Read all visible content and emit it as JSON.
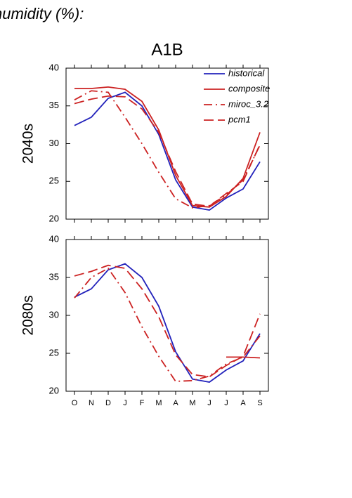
{
  "heading": "humidity (%):",
  "chart_data": [
    {
      "type": "line",
      "title": "A1B",
      "row_label": "2040s",
      "ylim": [
        20,
        40
      ],
      "yticks": [
        20,
        25,
        30,
        35,
        40
      ],
      "legend": "upper right",
      "series": [
        {
          "name": "historical",
          "color": "#2222bb",
          "dash": "solid",
          "values": [
            32.4,
            33.5,
            36.0,
            36.8,
            35.0,
            31.2,
            25.2,
            21.6,
            21.2,
            22.8,
            24.0,
            27.6
          ]
        },
        {
          "name": "composite",
          "color": "#cc2222",
          "dash": "solid",
          "values": [
            37.3,
            37.3,
            37.5,
            37.2,
            35.6,
            31.8,
            25.8,
            21.8,
            21.6,
            23.0,
            25.4,
            31.5
          ]
        },
        {
          "name": "miroc_3.2",
          "color": "#cc2222",
          "dash": "dashdot",
          "values": [
            35.8,
            37.0,
            36.8,
            33.5,
            30.0,
            26.2,
            22.7,
            21.5,
            21.8,
            23.2,
            25.2,
            29.8
          ]
        },
        {
          "name": "pcm1",
          "color": "#cc2222",
          "dash": "dashed",
          "values": [
            35.3,
            35.9,
            36.3,
            36.2,
            34.6,
            31.5,
            26.3,
            22.0,
            21.7,
            23.4,
            25.0,
            29.9
          ]
        }
      ]
    },
    {
      "type": "line",
      "row_label": "2080s",
      "categories": [
        "O",
        "N",
        "D",
        "J",
        "F",
        "M",
        "A",
        "M",
        "J",
        "J",
        "A",
        "S"
      ],
      "ylim": [
        20,
        40
      ],
      "yticks": [
        20,
        25,
        30,
        35,
        40
      ],
      "series": [
        {
          "color": "#2222bb",
          "dash": "solid",
          "values": [
            32.4,
            33.5,
            36.0,
            36.8,
            35.0,
            31.2,
            25.2,
            21.6,
            21.2,
            22.8,
            24.0,
            27.6
          ]
        },
        {
          "color": "#cc2222",
          "dash": "solid",
          "values": [
            null,
            null,
            null,
            null,
            null,
            null,
            null,
            null,
            null,
            24.5,
            24.5,
            24.4
          ]
        },
        {
          "color": "#cc2222",
          "dash": "dashdot",
          "values": [
            32.3,
            35.0,
            36.2,
            33.0,
            28.5,
            24.6,
            21.3,
            21.4,
            22.0,
            23.6,
            24.5,
            27.3
          ]
        },
        {
          "color": "#cc2222",
          "dash": "dashed",
          "values": [
            35.2,
            35.8,
            36.6,
            36.2,
            33.5,
            29.8,
            24.8,
            22.2,
            21.9,
            23.4,
            24.6,
            30.2
          ]
        }
      ]
    }
  ]
}
